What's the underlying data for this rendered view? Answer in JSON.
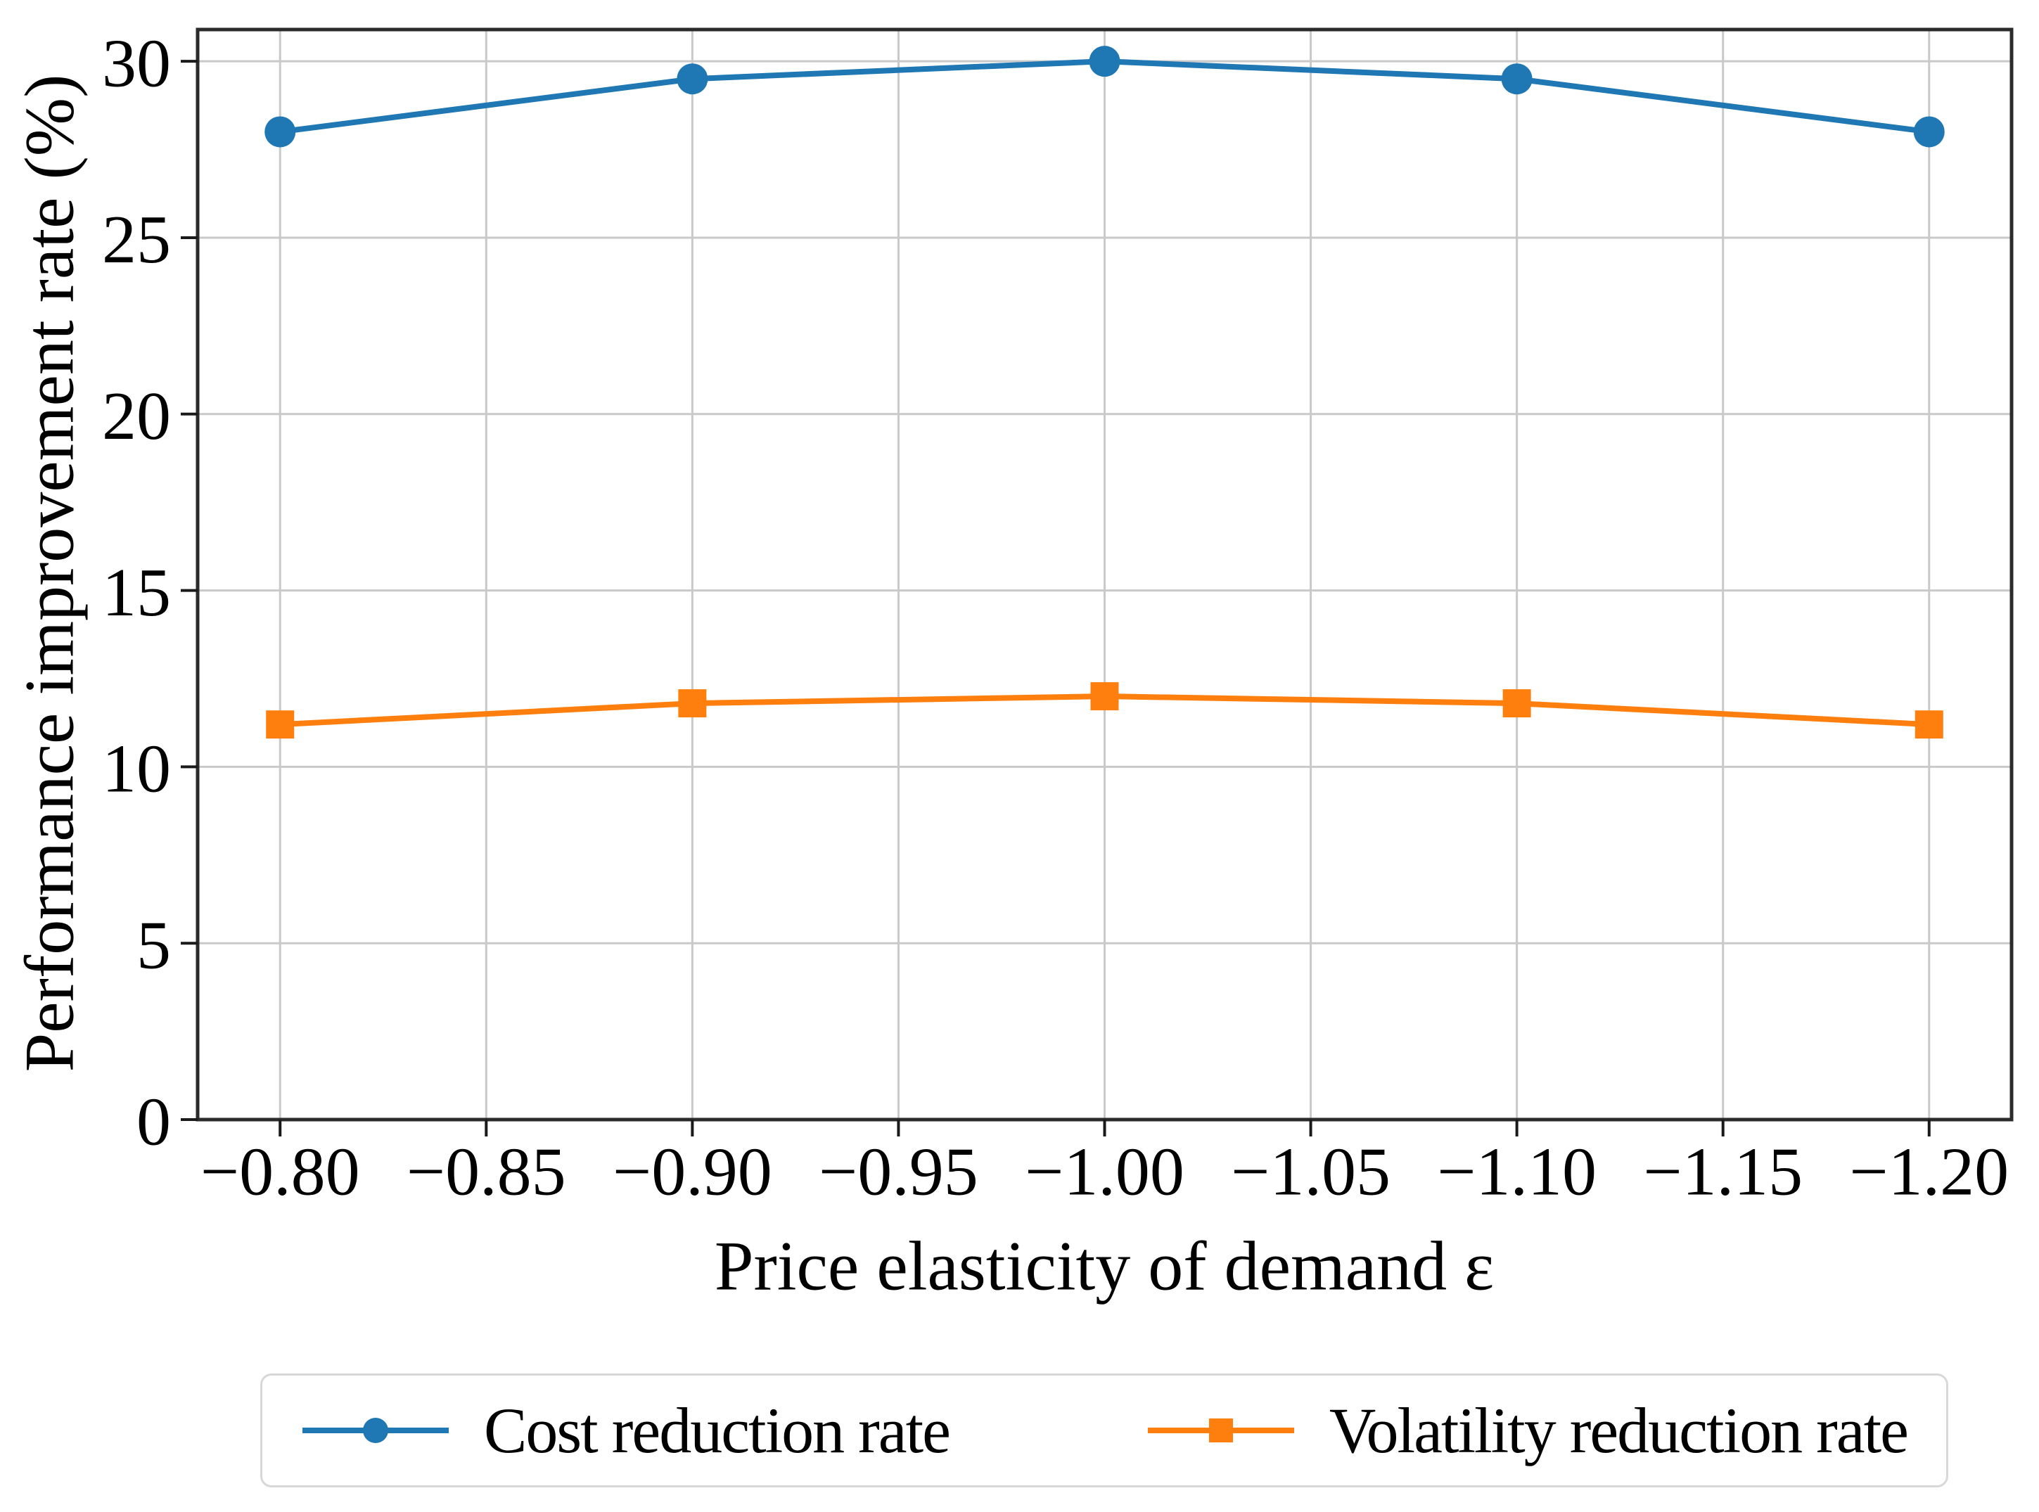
{
  "chart_data": {
    "type": "line",
    "title": "",
    "xlabel": "Price elasticity of demand ε",
    "ylabel": "Performance improvement rate (%)",
    "x": [
      -0.8,
      -0.9,
      -1.0,
      -1.1,
      -1.2
    ],
    "series": [
      {
        "name": "Cost reduction rate",
        "color": "#1f77b4",
        "marker": "circle",
        "values": [
          28.0,
          29.5,
          30.0,
          29.5,
          28.0
        ]
      },
      {
        "name": "Volatility reduction rate",
        "color": "#ff7f0e",
        "marker": "square",
        "values": [
          11.2,
          11.8,
          12.0,
          11.8,
          11.2
        ]
      }
    ],
    "x_ticks": {
      "values": [
        -0.8,
        -0.85,
        -0.9,
        -0.95,
        -1.0,
        -1.05,
        -1.1,
        -1.15,
        -1.2
      ],
      "labels": [
        "−0.80",
        "−0.85",
        "−0.90",
        "−0.95",
        "−1.00",
        "−1.05",
        "−1.10",
        "−1.15",
        "−1.20"
      ]
    },
    "y_ticks": {
      "values": [
        0,
        5,
        10,
        15,
        20,
        25,
        30
      ],
      "labels": [
        "0",
        "5",
        "10",
        "15",
        "20",
        "25",
        "30"
      ]
    },
    "xlim": [
      -0.78,
      -1.22
    ],
    "ylim": [
      0,
      30.9
    ],
    "x_axis_inverted": true,
    "grid": true,
    "legend_position": "bottom-outside",
    "grid_color": "#c9c9c9",
    "spine_color": "#2b2b2b",
    "tick_color": "#1a1a1a"
  }
}
